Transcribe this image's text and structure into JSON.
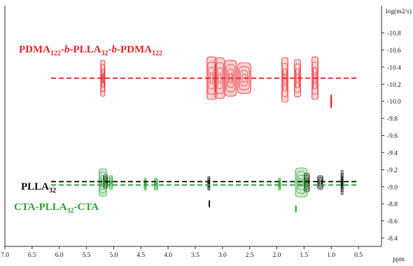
{
  "chart_data": {
    "type": "scatter",
    "title": "",
    "xlabel": "ppm",
    "ylabel": "log(m2/s)",
    "xlim": [
      7.0,
      0.0
    ],
    "ylim": [
      -8.2,
      -11.0
    ],
    "x_ticks": [
      7.0,
      6.5,
      6.0,
      5.5,
      5.0,
      4.5,
      4.0,
      3.5,
      3.0,
      2.5,
      2.0,
      1.5,
      1.0,
      0.5
    ],
    "x_tick_labels": [
      "7.0",
      "6.5",
      "6.0",
      "5.5",
      "5.0",
      "4.5",
      "4.0",
      "3.5",
      "3.0",
      "2.5",
      "2.0",
      "1.5",
      "1.0",
      "0.5"
    ],
    "y_ticks": [
      -10.8,
      -10.6,
      -10.4,
      -10.2,
      -10.0,
      -9.8,
      -9.6,
      -9.4,
      -9.2,
      -9.0,
      -8.8,
      -8.6,
      -8.4
    ],
    "y_tick_labels": [
      "-10.8",
      "-10.6",
      "-10.4",
      "-10.2",
      "-10.0",
      "-9.8",
      "-9.6",
      "-9.4",
      "-9.2",
      "-9.0",
      "-8.8",
      "-8.6",
      "-8.4"
    ],
    "grid": false,
    "series": [
      {
        "name": "PDMA122-b-PLLA32-b-PDMA122",
        "color": "#e8262b",
        "diffusion_line_y": -10.27,
        "line_x": [
          6.15,
          0.5
        ],
        "peaks": [
          {
            "x": 5.2,
            "y": -10.27,
            "w": 0.08,
            "h": 0.42
          },
          {
            "x": 3.2,
            "y": -10.27,
            "w": 0.18,
            "h": 0.5
          },
          {
            "x": 3.05,
            "y": -10.27,
            "w": 0.18,
            "h": 0.48
          },
          {
            "x": 2.85,
            "y": -10.27,
            "w": 0.22,
            "h": 0.42
          },
          {
            "x": 2.6,
            "y": -10.27,
            "w": 0.25,
            "h": 0.36
          },
          {
            "x": 1.85,
            "y": -10.25,
            "w": 0.12,
            "h": 0.52
          },
          {
            "x": 1.62,
            "y": -10.27,
            "w": 0.12,
            "h": 0.44
          },
          {
            "x": 1.3,
            "y": -10.27,
            "w": 0.12,
            "h": 0.5
          },
          {
            "x": 1.0,
            "y": -10.0,
            "w": 0.02,
            "h": 0.16
          }
        ],
        "label_parts": [
          {
            "t": "PDMA",
            "sub": false
          },
          {
            "t": "122",
            "sub": true
          },
          {
            "t": "-b-",
            "sub": false
          },
          {
            "t": "PLLA",
            "sub": false
          },
          {
            "t": "32",
            "sub": true
          },
          {
            "t": "-b-",
            "sub": false
          },
          {
            "t": "PDMA",
            "sub": false
          },
          {
            "t": "122",
            "sub": true
          }
        ]
      },
      {
        "name": "PLLA32",
        "color": "#111111",
        "diffusion_line_y": -9.06,
        "line_x": [
          6.15,
          0.5
        ],
        "peaks": [
          {
            "x": 5.15,
            "y": -9.06,
            "w": 0.08,
            "h": 0.16
          },
          {
            "x": 3.25,
            "y": -9.04,
            "w": 0.04,
            "h": 0.16
          },
          {
            "x": 3.24,
            "y": -8.8,
            "w": 0.01,
            "h": 0.08
          },
          {
            "x": 1.45,
            "y": -9.05,
            "w": 0.1,
            "h": 0.22
          },
          {
            "x": 1.2,
            "y": -9.05,
            "w": 0.1,
            "h": 0.16
          },
          {
            "x": 0.8,
            "y": -9.05,
            "w": 0.04,
            "h": 0.28
          }
        ],
        "label_parts": [
          {
            "t": "PLLA",
            "sub": false
          },
          {
            "t": "32",
            "sub": true
          }
        ]
      },
      {
        "name": "CTA-PLLA32-CTA",
        "color": "#2fa63a",
        "diffusion_line_y": -9.02,
        "line_x": [
          6.15,
          0.5
        ],
        "peaks": [
          {
            "x": 5.2,
            "y": -9.05,
            "w": 0.14,
            "h": 0.32
          },
          {
            "x": 5.05,
            "y": -9.05,
            "w": 0.06,
            "h": 0.16
          },
          {
            "x": 4.42,
            "y": -9.03,
            "w": 0.04,
            "h": 0.14
          },
          {
            "x": 4.22,
            "y": -9.03,
            "w": 0.06,
            "h": 0.14
          },
          {
            "x": 1.95,
            "y": -9.03,
            "w": 0.04,
            "h": 0.14
          },
          {
            "x": 1.55,
            "y": -9.05,
            "w": 0.22,
            "h": 0.34
          },
          {
            "x": 1.65,
            "y": -8.74,
            "w": 0.02,
            "h": 0.08
          }
        ],
        "label_parts": [
          {
            "t": "CTA-PLLA",
            "sub": false
          },
          {
            "t": "32",
            "sub": true
          },
          {
            "t": "-CTA",
            "sub": false
          }
        ]
      }
    ]
  }
}
